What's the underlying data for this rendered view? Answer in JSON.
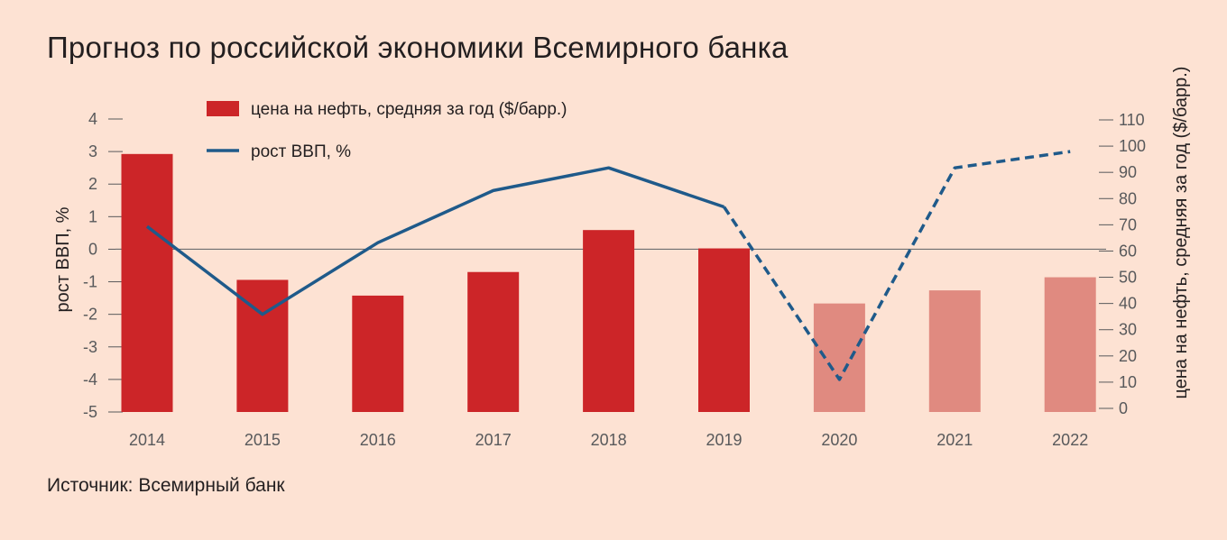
{
  "title": "Прогноз по российской экономики Всемирного банка",
  "source": "Источник: Всемирный банк",
  "colors": {
    "background": "#fde2d3",
    "bar_actual": "#cc2528",
    "bar_forecast": "#e08a80",
    "line": "#1f5a8a",
    "zero_line": "#6d6e70",
    "tick": "#58595b"
  },
  "chart_data": {
    "type": "bar",
    "categories": [
      "2014",
      "2015",
      "2016",
      "2017",
      "2018",
      "2019",
      "2020",
      "2021",
      "2022"
    ],
    "forecast_from": "2020",
    "series": [
      {
        "name": "цена на нефть, средняя за год ($/барр.)",
        "type": "bar",
        "axis": "right",
        "values": [
          97,
          49,
          43,
          52,
          68,
          61,
          40,
          45,
          50
        ]
      },
      {
        "name": "рост ВВП, %",
        "type": "line",
        "axis": "left",
        "values": [
          0.7,
          -2.0,
          0.2,
          1.8,
          2.5,
          1.3,
          -4.0,
          2.5,
          3.0
        ],
        "dashed_from": "2019"
      }
    ],
    "y_left": {
      "label": "рост ВВП, %",
      "ylim": [
        -5,
        4
      ],
      "ticks": [
        "4",
        "3",
        "2",
        "1",
        "0",
        "-1",
        "-2",
        "-3",
        "-4",
        "-5"
      ]
    },
    "y_right": {
      "label": "цена на нефть, средняя за год ($/барр.)",
      "ylim": [
        0,
        110
      ],
      "ticks": [
        "110",
        "100",
        "90",
        "80",
        "70",
        "60",
        "50",
        "40",
        "30",
        "20",
        "10",
        "0"
      ]
    },
    "legend": "top-left",
    "grid": false
  }
}
